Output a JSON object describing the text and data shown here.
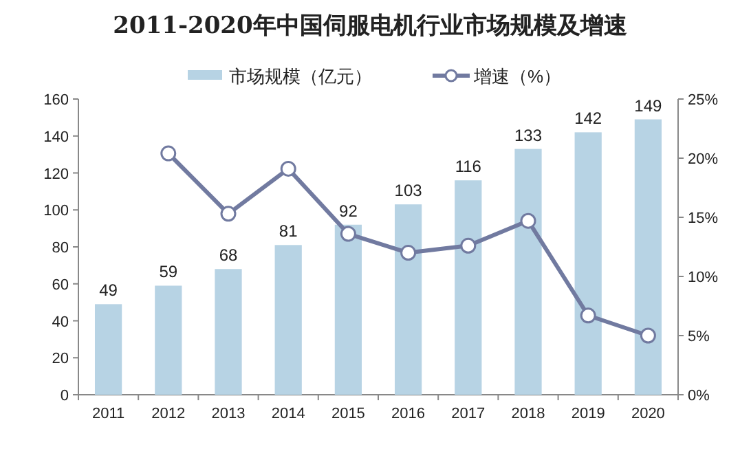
{
  "chart_data": {
    "type": "bar",
    "title": "2011-2020年中国伺服电机行业市场规模及增速",
    "categories": [
      "2011",
      "2012",
      "2013",
      "2014",
      "2015",
      "2016",
      "2017",
      "2018",
      "2019",
      "2020"
    ],
    "series": [
      {
        "name": "市场规模（亿元）",
        "color": "#b7d3e4",
        "values": [
          49,
          59,
          68,
          81,
          92,
          103,
          116,
          133,
          142,
          149
        ],
        "value_labels": [
          "49",
          "59",
          "68",
          "81",
          "92",
          "103",
          "116",
          "133",
          "142",
          "149"
        ]
      },
      {
        "name": "增速（%）",
        "type": "line",
        "axis": "y2",
        "color": "#717aa0",
        "values": [
          null,
          20.4,
          15.3,
          19.1,
          13.6,
          12.0,
          12.6,
          14.7,
          6.7,
          5.0
        ]
      }
    ],
    "ylim": [
      0,
      160
    ],
    "yticks": [
      0,
      20,
      40,
      60,
      80,
      100,
      120,
      140,
      160
    ],
    "y2lim": [
      0,
      25
    ],
    "y2ticks": [
      {
        "value": 0,
        "label": "0%"
      },
      {
        "value": 5,
        "label": "5%"
      },
      {
        "value": 10,
        "label": "10%"
      },
      {
        "value": 15,
        "label": "15%"
      },
      {
        "value": 20,
        "label": "20%"
      },
      {
        "value": 25,
        "label": "25%"
      }
    ],
    "legend": "top",
    "grid": false,
    "marker": "circle",
    "line_style": "solid"
  }
}
